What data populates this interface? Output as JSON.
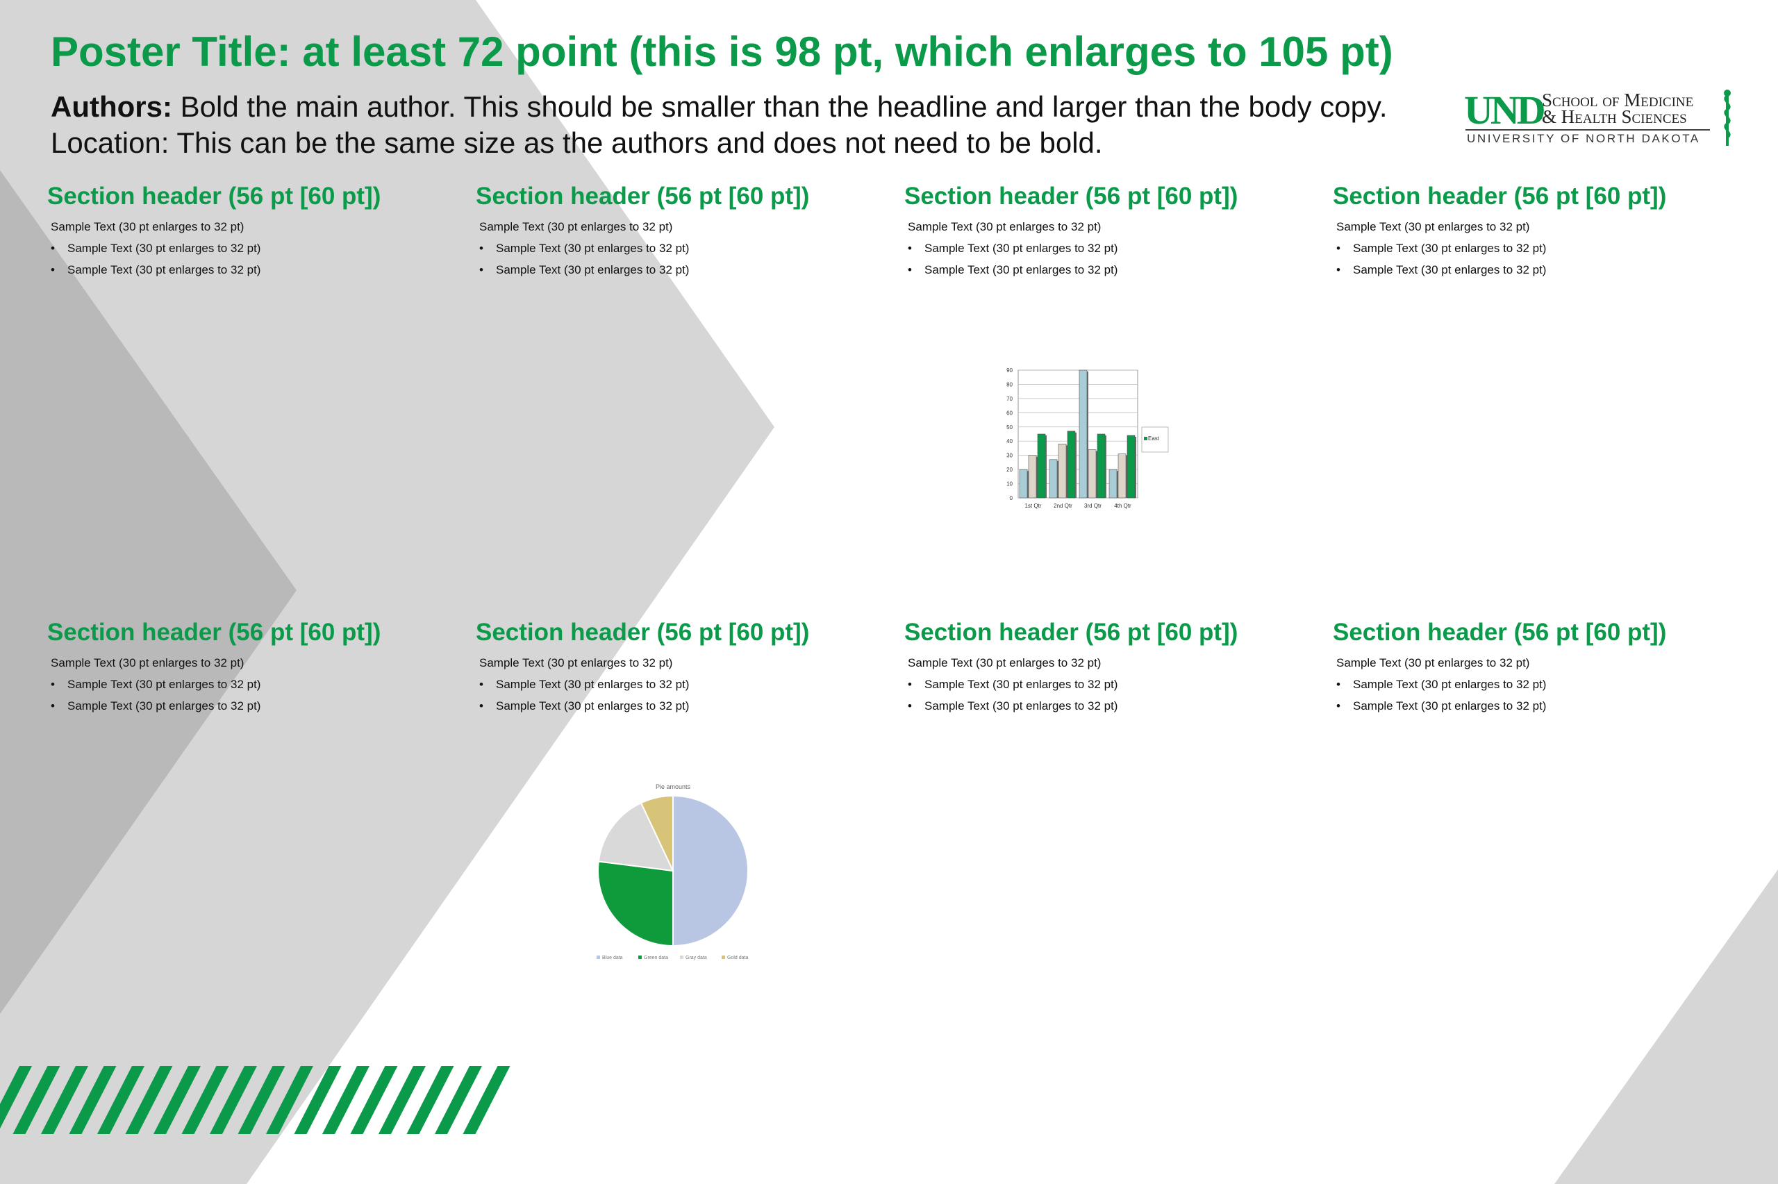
{
  "poster": {
    "title": "Poster Title: at least 72 point (this is 98 pt, which enlarges to 105 pt)",
    "authors_label": "Authors:",
    "authors_text": " Bold the main author. This should be smaller than the headline and larger than the body copy.",
    "location_text": "Location: This can be the same size as the authors and does not need to be bold."
  },
  "logo": {
    "mark": "UND",
    "line1": "School of Medicine",
    "line2": "& Health Sciences",
    "line3": "UNIVERSITY OF NORTH DAKOTA"
  },
  "sections": [
    {
      "header": "Section header (56 pt [60 pt])",
      "para": "Sample Text (30 pt enlarges to 32 pt)",
      "bullets": [
        "Sample Text (30 pt enlarges to 32 pt)",
        "Sample Text (30 pt enlarges to 32 pt)"
      ]
    },
    {
      "header": "Section header (56 pt [60 pt])",
      "para": "Sample Text (30 pt enlarges to 32 pt)",
      "bullets": [
        "Sample Text (30 pt enlarges to 32 pt)",
        "Sample Text (30 pt enlarges to 32 pt)"
      ]
    },
    {
      "header": "Section header (56 pt [60 pt])",
      "para": "Sample Text (30 pt enlarges to 32 pt)",
      "bullets": [
        "Sample Text (30 pt enlarges to 32 pt)",
        "Sample Text (30 pt enlarges to 32 pt)"
      ]
    },
    {
      "header": "Section header (56 pt [60 pt])",
      "para": "Sample Text (30 pt enlarges to 32 pt)",
      "bullets": [
        "Sample Text (30 pt enlarges to 32 pt)",
        "Sample Text (30 pt enlarges to 32 pt)"
      ]
    },
    {
      "header": "Section header (56 pt [60 pt])",
      "para": "Sample Text (30 pt enlarges to 32 pt)",
      "bullets": [
        "Sample Text (30 pt enlarges to 32 pt)",
        "Sample Text (30 pt enlarges to 32 pt)"
      ]
    },
    {
      "header": "Section header (56 pt [60 pt])",
      "para": "Sample Text (30 pt enlarges to 32 pt)",
      "bullets": [
        "Sample Text (30 pt enlarges to 32 pt)",
        "Sample Text (30 pt enlarges to 32 pt)"
      ]
    },
    {
      "header": "Section header (56 pt [60 pt])",
      "para": "Sample Text (30 pt enlarges to 32 pt)",
      "bullets": [
        "Sample Text (30 pt enlarges to 32 pt)",
        "Sample Text (30 pt enlarges to 32 pt)"
      ]
    },
    {
      "header": "Section header (56 pt [60 pt])",
      "para": "Sample Text (30 pt enlarges to 32 pt)",
      "bullets": [
        "Sample Text (30 pt enlarges to 32 pt)",
        "Sample Text (30 pt enlarges to 32 pt)"
      ]
    }
  ],
  "colors": {
    "green": "#0a9a4a",
    "light_blue": "#a9cdd6",
    "tan": "#ddd6c8",
    "pie_blue": "#b9c6e3",
    "pie_green": "#0f9a3c",
    "pie_gray": "#d9d9d9",
    "pie_gold": "#d8c478",
    "bg_gray_light": "#d6d6d6",
    "bg_gray_dark": "#b9b9b9"
  },
  "chart_data": [
    {
      "type": "bar",
      "categories": [
        "1st Qtr",
        "2nd Qtr",
        "3rd Qtr",
        "4th Qtr"
      ],
      "series": [
        {
          "name": "",
          "values": [
            20,
            27,
            90,
            20
          ],
          "color": "#a9cdd6"
        },
        {
          "name": "",
          "values": [
            30,
            38,
            34,
            31
          ],
          "color": "#ddd6c8"
        },
        {
          "name": "East",
          "values": [
            45,
            47,
            45,
            44
          ],
          "color": "#0a9a4a"
        }
      ],
      "ylim": [
        0,
        90
      ],
      "yticks": [
        0,
        10,
        20,
        30,
        40,
        50,
        60,
        70,
        80,
        90
      ],
      "legend": [
        "East"
      ],
      "legend_position": "right",
      "grid": true
    },
    {
      "type": "pie",
      "title": "Pie amounts",
      "labels": [
        "Blue data",
        "Green data",
        "Gray data",
        "Gold data"
      ],
      "values": [
        50,
        27,
        16,
        7
      ],
      "colors": [
        "#b9c6e3",
        "#0f9a3c",
        "#d9d9d9",
        "#d8c478"
      ],
      "legend_position": "bottom"
    }
  ]
}
